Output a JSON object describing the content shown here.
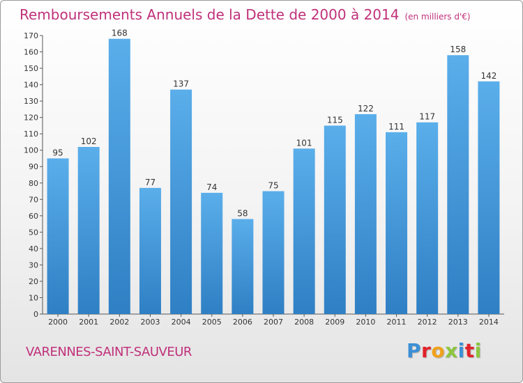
{
  "title": "Remboursements Annuels de la Dette de 2000 à 2014",
  "subtitle": "(en milliers d'€)",
  "city": "VARENNES-SAINT-SAUVEUR",
  "logo": {
    "letters": [
      "P",
      "r",
      "o",
      "x",
      "i",
      "t",
      "i"
    ],
    "colors": [
      "#3b8fd6",
      "#e2222a",
      "#f0a11b",
      "#8cc63e",
      "#3b8fd6",
      "#e2222a",
      "#8cc63e"
    ]
  },
  "chart_data": {
    "type": "bar",
    "categories": [
      "2000",
      "2001",
      "2002",
      "2003",
      "2004",
      "2005",
      "2006",
      "2007",
      "2008",
      "2009",
      "2010",
      "2011",
      "2012",
      "2013",
      "2014"
    ],
    "values": [
      95,
      102,
      168,
      77,
      137,
      74,
      58,
      75,
      101,
      115,
      122,
      111,
      117,
      158,
      142
    ],
    "ylim": [
      0,
      170
    ],
    "yticks": [
      0,
      10,
      20,
      30,
      40,
      50,
      60,
      70,
      80,
      90,
      100,
      110,
      120,
      130,
      140,
      150,
      160,
      170
    ],
    "grid": false,
    "bar_color": "#4a9ee0"
  }
}
